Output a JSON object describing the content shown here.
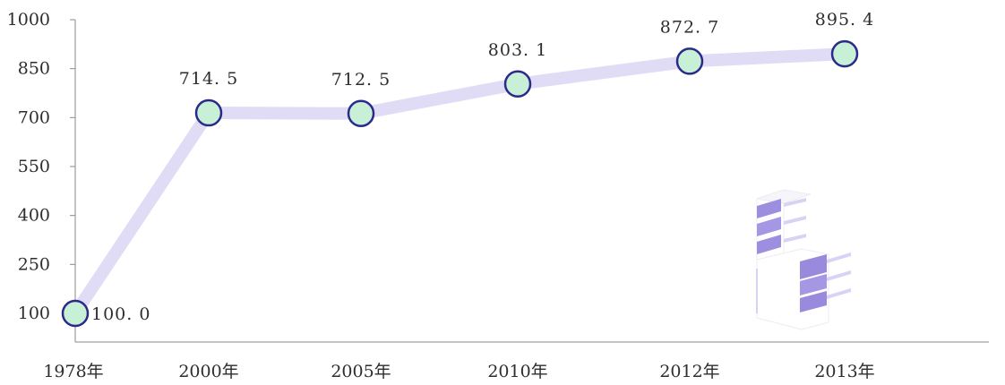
{
  "chart_data": {
    "type": "line",
    "categories": [
      "1978年",
      "2000年",
      "2005年",
      "2010年",
      "2012年",
      "2013年"
    ],
    "series": [
      {
        "values": [
          100.0,
          714.5,
          712.5,
          803.1,
          872.7,
          895.4
        ],
        "labels": [
          "100. 0",
          "714. 5",
          "712. 5",
          "803. 1",
          "872. 7",
          "895. 4"
        ]
      }
    ],
    "yticks": [
      "100",
      "250",
      "400",
      "550",
      "700",
      "850",
      "1000"
    ],
    "ylim": [
      100,
      1000
    ],
    "grid": false,
    "legend": "none",
    "colors": {
      "line": "#e1dcf6",
      "marker_fill": "#c8f0d6",
      "marker_stroke": "#2b2a8c",
      "axis": "#8a8a8a",
      "decor_purple": "#a090e0"
    }
  }
}
